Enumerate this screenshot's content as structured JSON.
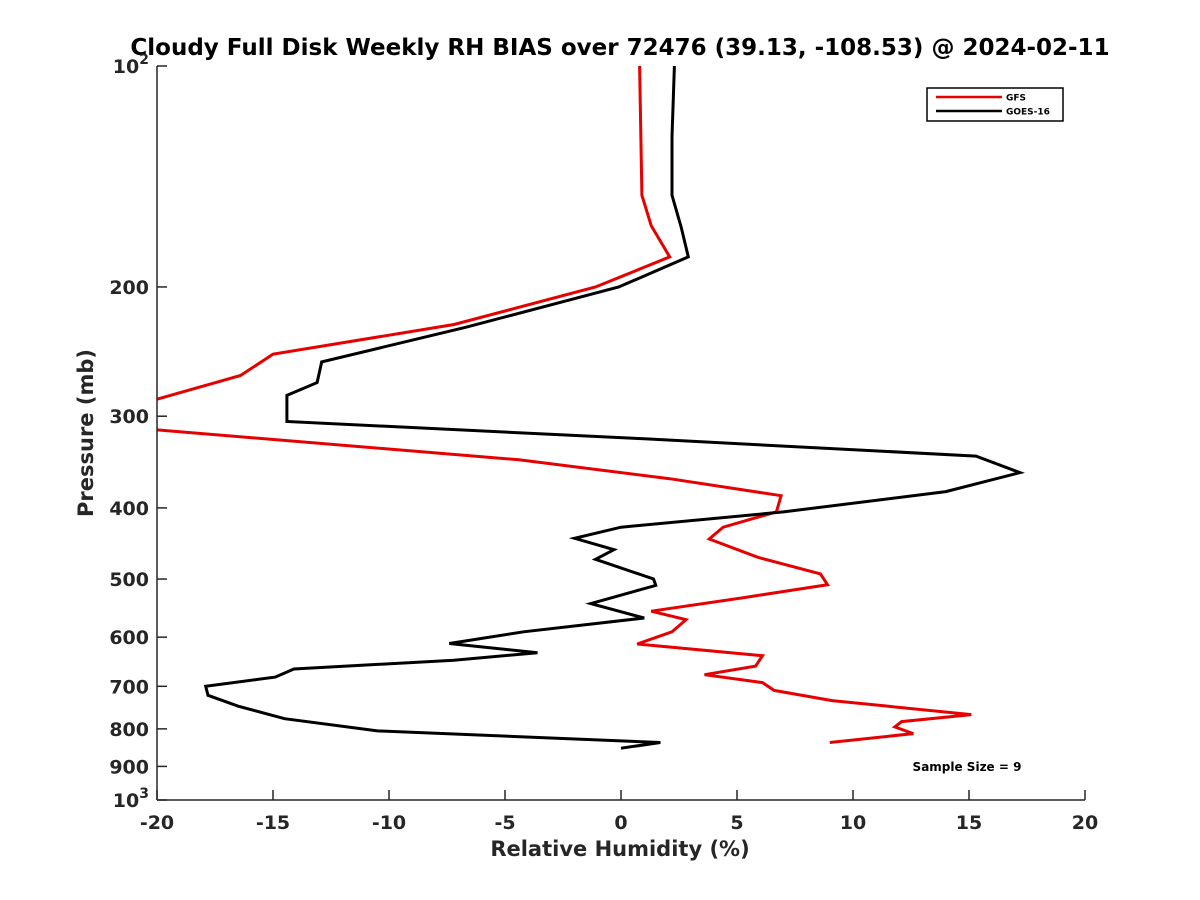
{
  "chart_data": {
    "type": "line",
    "title": "Cloudy Full Disk Weekly RH BIAS over 72476 (39.13, -108.53) @ 2024-02-11",
    "xlabel": "Relative Humidity (%)",
    "ylabel": "Pressure (mb)",
    "xlim": [
      -20,
      20
    ],
    "ylim": [
      100,
      1000
    ],
    "yscale": "log",
    "y_reversed": true,
    "x_ticks": [
      -20,
      -15,
      -10,
      -5,
      0,
      5,
      10,
      15,
      20
    ],
    "x_tick_labels": [
      "-20",
      "-15",
      "-10",
      "-5",
      "0",
      "5",
      "10",
      "15",
      "20"
    ],
    "y_ticks": [
      100,
      200,
      300,
      400,
      500,
      600,
      700,
      800,
      900,
      1000
    ],
    "y_tick_labels": [
      {
        "base": "10",
        "exp": "2"
      },
      {
        "base": "200",
        "exp": ""
      },
      {
        "base": "300",
        "exp": ""
      },
      {
        "base": "400",
        "exp": ""
      },
      {
        "base": "500",
        "exp": ""
      },
      {
        "base": "600",
        "exp": ""
      },
      {
        "base": "700",
        "exp": ""
      },
      {
        "base": "800",
        "exp": ""
      },
      {
        "base": "900",
        "exp": ""
      },
      {
        "base": "10",
        "exp": "3"
      }
    ],
    "grid": false,
    "legend_position": "top-right",
    "annotation": "Sample Size = 9",
    "series": [
      {
        "name": "GFS",
        "color": "#e60000",
        "points": [
          [
            0.8,
            100
          ],
          [
            0.9,
            150
          ],
          [
            1.3,
            165
          ],
          [
            2.1,
            182
          ],
          [
            -1.1,
            200
          ],
          [
            -7.2,
            225
          ],
          [
            -15.0,
            247
          ],
          [
            -16.4,
            264
          ],
          [
            -20.1,
            285
          ],
          [
            -20.1,
            313
          ],
          [
            -4.4,
            344
          ],
          [
            2.1,
            365
          ],
          [
            6.9,
            385
          ],
          [
            6.7,
            405
          ],
          [
            4.4,
            425
          ],
          [
            3.8,
            441
          ],
          [
            5.9,
            467
          ],
          [
            8.6,
            492
          ],
          [
            8.9,
            509
          ],
          [
            5.3,
            530
          ],
          [
            1.3,
            553
          ],
          [
            2.8,
            568
          ],
          [
            2.2,
            590
          ],
          [
            0.7,
            613
          ],
          [
            6.1,
            636
          ],
          [
            5.8,
            657
          ],
          [
            3.6,
            675
          ],
          [
            6.1,
            692
          ],
          [
            6.6,
            709
          ],
          [
            9.1,
            732
          ],
          [
            15.1,
            765
          ],
          [
            12.1,
            782
          ],
          [
            11.8,
            795
          ],
          [
            12.6,
            812
          ],
          [
            9.0,
            835
          ]
        ]
      },
      {
        "name": "GOES-16",
        "color": "#000000",
        "points": [
          [
            2.3,
            100
          ],
          [
            2.2,
            125
          ],
          [
            2.2,
            150
          ],
          [
            2.6,
            166
          ],
          [
            2.9,
            182
          ],
          [
            -0.1,
            200
          ],
          [
            -6.7,
            227
          ],
          [
            -12.9,
            253
          ],
          [
            -13.1,
            270
          ],
          [
            -14.4,
            281
          ],
          [
            -14.4,
            305
          ],
          [
            1.0,
            322
          ],
          [
            15.3,
            340
          ],
          [
            17.2,
            358
          ],
          [
            14.0,
            380
          ],
          [
            7.0,
            405
          ],
          [
            0.0,
            425
          ],
          [
            -2.0,
            440
          ],
          [
            -0.3,
            456
          ],
          [
            -1.1,
            470
          ],
          [
            1.4,
            500
          ],
          [
            1.5,
            510
          ],
          [
            -1.3,
            540
          ],
          [
            1.0,
            565
          ],
          [
            -4.2,
            590
          ],
          [
            -7.4,
            612
          ],
          [
            -3.6,
            630
          ],
          [
            -7.2,
            645
          ],
          [
            -14.1,
            663
          ],
          [
            -14.9,
            680
          ],
          [
            -17.9,
            700
          ],
          [
            -17.8,
            720
          ],
          [
            -16.5,
            745
          ],
          [
            -14.5,
            775
          ],
          [
            -10.5,
            805
          ],
          [
            1.7,
            835
          ],
          [
            0.0,
            850
          ]
        ]
      }
    ]
  }
}
